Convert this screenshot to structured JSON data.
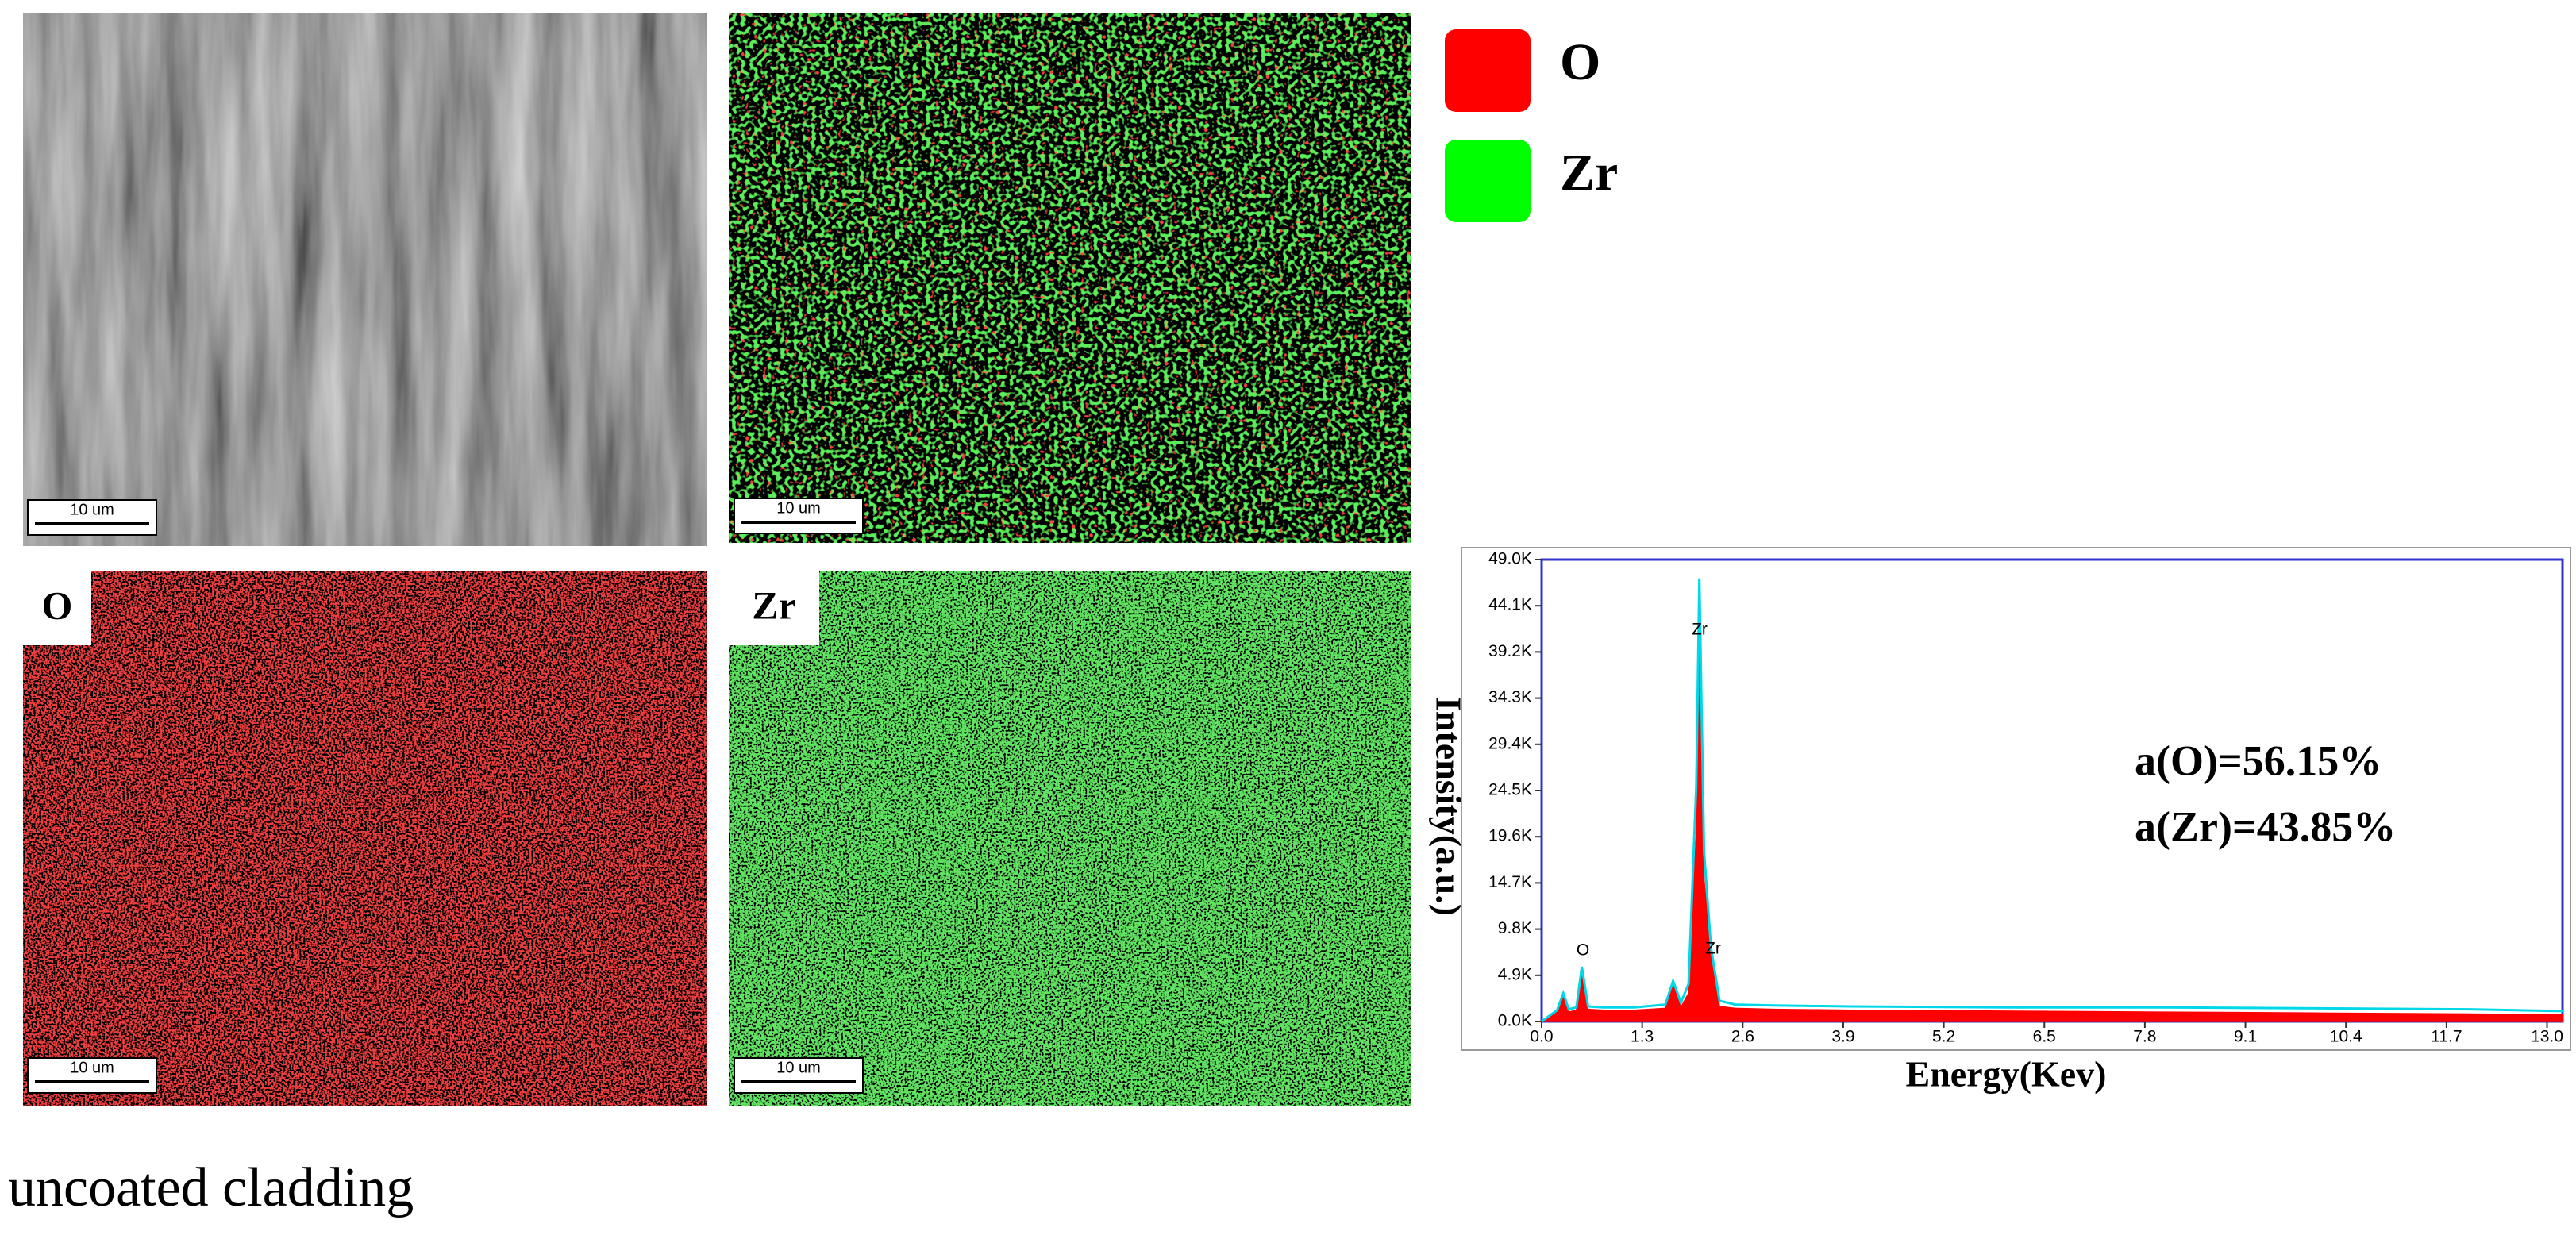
{
  "panels": {
    "legend": [
      {
        "label": "O",
        "color": "#ff0000"
      },
      {
        "label": "Zr",
        "color": "#00ff00"
      }
    ],
    "map_labels": [
      "O",
      "Zr"
    ],
    "scale_bars": [
      "10 um",
      "10 um",
      "10 um",
      "10 um"
    ]
  },
  "caption": "uncoated cladding",
  "chart_data": {
    "type": "area",
    "xlabel": "Energy(Kev)",
    "ylabel": "Intensity(a.u.)",
    "annotations": [
      "Zr",
      "O",
      "Zr",
      "a(O)=56.15%",
      "a(Zr)=43.85%"
    ],
    "xlim": [
      0,
      13.2
    ],
    "ylim": [
      0,
      49000
    ],
    "xticks": [
      {
        "value": 0,
        "label": "0.0"
      },
      1.3,
      2.6,
      3.9,
      5.2,
      6.5,
      7.8,
      9.1,
      10.4,
      11.7,
      {
        "value": 13,
        "label": "13.0"
      }
    ],
    "yticks": [
      {
        "value": 0,
        "label": "0.0K"
      },
      {
        "value": 4900,
        "label": "4.9K"
      },
      {
        "value": 9800,
        "label": "9.8K"
      },
      {
        "value": 14700,
        "label": "14.7K"
      },
      {
        "value": 19600,
        "label": "19.6K"
      },
      {
        "value": 24500,
        "label": "24.5K"
      },
      {
        "value": 29400,
        "label": "29.4K"
      },
      {
        "value": 34300,
        "label": "34.3K"
      },
      {
        "value": 39200,
        "label": "39.2K"
      },
      {
        "value": 44100,
        "label": "44.1K"
      },
      {
        "value": 49000,
        "label": "49.0K"
      }
    ],
    "x": [
      0,
      0.2,
      0.28,
      0.35,
      0.45,
      0.52,
      0.6,
      0.8,
      1.2,
      1.6,
      1.7,
      1.8,
      1.9,
      2.0,
      2.04,
      2.1,
      2.19,
      2.3,
      2.5,
      3,
      4,
      6,
      8,
      10,
      12,
      13.2
    ],
    "series": [
      {
        "color": "#ff0000",
        "fill": true,
        "values": [
          0,
          1000,
          2900,
          1000,
          1200,
          5500,
          1300,
          1200,
          1200,
          1400,
          4100,
          1500,
          3000,
          20000,
          41500,
          15000,
          7400,
          1600,
          1400,
          1300,
          1200,
          1100,
          1000,
          900,
          800,
          700
        ]
      },
      {
        "color": "#00d8e8",
        "fill": false,
        "values": [
          0,
          1200,
          3000,
          1300,
          1500,
          5800,
          1600,
          1500,
          1500,
          1800,
          4300,
          2000,
          4000,
          25000,
          47000,
          18000,
          7800,
          2200,
          1800,
          1700,
          1600,
          1500,
          1500,
          1400,
          1300,
          1100
        ]
      }
    ]
  }
}
